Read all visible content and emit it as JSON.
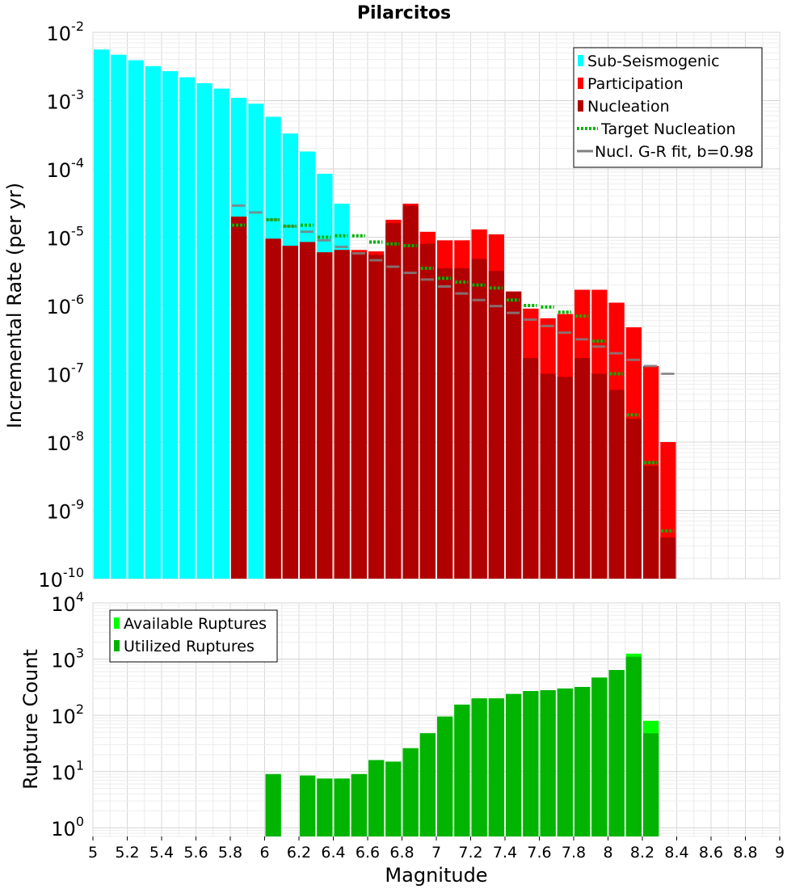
{
  "chart_data": [
    {
      "type": "bar",
      "title": "Pilarcitos",
      "ylabel": "Incremental Rate (per yr)",
      "xlabel": "",
      "xlim": [
        5,
        9
      ],
      "ylog": true,
      "ylim": [
        1e-10,
        0.01
      ],
      "ytick_exponents": [
        "-10",
        "-9",
        "-8",
        "-7",
        "-6",
        "-5",
        "-4",
        "-3",
        "-2"
      ],
      "ytick_base": "10",
      "grid": true,
      "legend_position": "top-right",
      "legend": [
        {
          "label": "Sub-Seismogenic",
          "color": "#00ffff",
          "kind": "box"
        },
        {
          "label": "Participation",
          "color": "#ff0000",
          "kind": "box"
        },
        {
          "label": "Nucleation",
          "color": "#b00000",
          "kind": "box"
        },
        {
          "label": "Target Nucleation",
          "color": "#00b400",
          "kind": "dots"
        },
        {
          "label": "Nucl. G-R fit, b=0.98",
          "color": "#808080",
          "kind": "line"
        }
      ],
      "bin_width": 0.1,
      "series": [
        {
          "name": "Sub-Seismogenic",
          "color": "#00ffff",
          "x": [
            5.05,
            5.15,
            5.25,
            5.35,
            5.45,
            5.55,
            5.65,
            5.75,
            5.85,
            5.95,
            6.05,
            6.15,
            6.25,
            6.35,
            6.45
          ],
          "values": [
            0.0056,
            0.0047,
            0.0039,
            0.0032,
            0.0027,
            0.0022,
            0.0018,
            0.0015,
            0.0011,
            0.0009,
            0.00058,
            0.00033,
            0.00018,
            8.5e-05,
            3.1e-05
          ]
        },
        {
          "name": "Participation",
          "color": "#ff0000",
          "x": [
            5.85,
            6.05,
            6.15,
            6.25,
            6.35,
            6.45,
            6.55,
            6.65,
            6.75,
            6.85,
            6.95,
            7.05,
            7.15,
            7.25,
            7.35,
            7.45,
            7.55,
            7.65,
            7.75,
            7.85,
            7.95,
            8.05,
            8.15,
            8.25,
            8.35
          ],
          "values": [
            2e-05,
            9.5e-06,
            7.5e-06,
            8.5e-06,
            6e-06,
            6.5e-06,
            6.5e-06,
            6.2e-06,
            1.8e-05,
            3.1e-05,
            1.2e-05,
            9e-06,
            9e-06,
            1.3e-05,
            1.1e-05,
            1.6e-06,
            9e-07,
            6.5e-07,
            7.5e-07,
            1.7e-06,
            1.7e-06,
            1.1e-06,
            4.8e-07,
            1.3e-07,
            1e-08
          ]
        },
        {
          "name": "Nucleation",
          "color": "#b00000",
          "x": [
            5.85,
            6.05,
            6.15,
            6.25,
            6.35,
            6.45,
            6.55,
            6.65,
            6.75,
            6.85,
            6.95,
            7.05,
            7.15,
            7.25,
            7.35,
            7.45,
            7.55,
            7.65,
            7.75,
            7.85,
            7.95,
            8.05,
            8.15,
            8.25,
            8.35
          ],
          "values": [
            2e-05,
            9.5e-06,
            7.5e-06,
            8.5e-06,
            6e-06,
            6.5e-06,
            6e-06,
            5.5e-06,
            1.6e-05,
            2.9e-05,
            8e-06,
            3.5e-06,
            3.5e-06,
            4.8e-06,
            3.2e-06,
            1.6e-06,
            1.7e-07,
            1e-07,
            9e-08,
            1.7e-07,
            1e-07,
            5.8e-08,
            2.2e-08,
            4.5e-09,
            4e-10
          ]
        },
        {
          "name": "Target Nucleation",
          "color": "#00b400",
          "x": [
            5.85,
            6.05,
            6.15,
            6.25,
            6.35,
            6.45,
            6.55,
            6.65,
            6.75,
            6.85,
            6.95,
            7.05,
            7.15,
            7.25,
            7.35,
            7.45,
            7.55,
            7.65,
            7.75,
            7.85,
            7.95,
            8.05,
            8.15,
            8.25,
            8.35
          ],
          "values": [
            1.5e-05,
            1.8e-05,
            1.45e-05,
            1.5e-05,
            1e-05,
            1.05e-05,
            1.05e-05,
            8.5e-06,
            8e-06,
            7.5e-06,
            3.5e-06,
            2.5e-06,
            2.2e-06,
            2e-06,
            1.8e-06,
            1.2e-06,
            1e-06,
            9.5e-07,
            8e-07,
            7e-07,
            3e-07,
            1e-07,
            2.5e-08,
            5e-09,
            5e-10
          ]
        },
        {
          "name": "Nucl. G-R fit, b=0.98",
          "color": "#808080",
          "x": [
            5.85,
            5.95,
            6.05,
            6.15,
            6.25,
            6.35,
            6.45,
            6.55,
            6.65,
            6.75,
            6.85,
            6.95,
            7.05,
            7.15,
            7.25,
            7.35,
            7.45,
            7.55,
            7.65,
            7.75,
            7.85,
            7.95,
            8.05,
            8.15,
            8.25,
            8.35
          ],
          "values": [
            2.9e-05,
            2.3e-05,
            1.8e-05,
            1.45e-05,
            1.2e-05,
            9e-06,
            7.2e-06,
            5.8e-06,
            4.6e-06,
            3.7e-06,
            3e-06,
            2.4e-06,
            1.9e-06,
            1.5e-06,
            1.2e-06,
            9.8e-07,
            7.8e-07,
            6.2e-07,
            5e-07,
            4e-07,
            3.2e-07,
            2.5e-07,
            2e-07,
            1.6e-07,
            1.3e-07,
            1e-07
          ]
        }
      ]
    },
    {
      "type": "bar",
      "title": "",
      "xlabel": "Magnitude",
      "ylabel": "Rupture Count",
      "xlim": [
        5,
        9
      ],
      "ylog": true,
      "ylim": [
        0.7,
        10000
      ],
      "ytick_exponents": [
        "0",
        "1",
        "2",
        "3",
        "4"
      ],
      "ytick_base": "10",
      "xticks": [
        "5",
        "5.2",
        "5.4",
        "5.6",
        "5.8",
        "6",
        "6.2",
        "6.4",
        "6.6",
        "6.8",
        "7",
        "7.2",
        "7.4",
        "7.6",
        "7.8",
        "8",
        "8.2",
        "8.4",
        "8.6",
        "8.8",
        "9"
      ],
      "grid": true,
      "legend_position": "top-left",
      "legend": [
        {
          "label": "Available Ruptures",
          "color": "#00ff00",
          "kind": "box"
        },
        {
          "label": "Utilized Ruptures",
          "color": "#00b400",
          "kind": "box"
        }
      ],
      "bin_width": 0.1,
      "series": [
        {
          "name": "Available Ruptures",
          "color": "#00ff00",
          "x": [
            6.05,
            6.25,
            6.35,
            6.45,
            6.55,
            6.65,
            6.75,
            6.85,
            6.95,
            7.05,
            7.15,
            7.25,
            7.35,
            7.45,
            7.55,
            7.65,
            7.75,
            7.85,
            7.95,
            8.05,
            8.15,
            8.25
          ],
          "values": [
            9,
            8.5,
            7.5,
            7.5,
            9,
            16,
            15,
            26,
            48,
            95,
            155,
            200,
            200,
            240,
            270,
            280,
            300,
            320,
            470,
            640,
            1250,
            80
          ]
        },
        {
          "name": "Utilized Ruptures",
          "color": "#00b400",
          "x": [
            6.05,
            6.25,
            6.35,
            6.45,
            6.55,
            6.65,
            6.75,
            6.85,
            6.95,
            7.05,
            7.15,
            7.25,
            7.35,
            7.45,
            7.55,
            7.65,
            7.75,
            7.85,
            7.95,
            8.05,
            8.15,
            8.25
          ],
          "values": [
            9,
            8.5,
            7.5,
            7.5,
            9,
            16,
            15,
            26,
            48,
            95,
            155,
            200,
            200,
            240,
            270,
            280,
            300,
            320,
            470,
            640,
            1100,
            48
          ]
        }
      ]
    }
  ]
}
